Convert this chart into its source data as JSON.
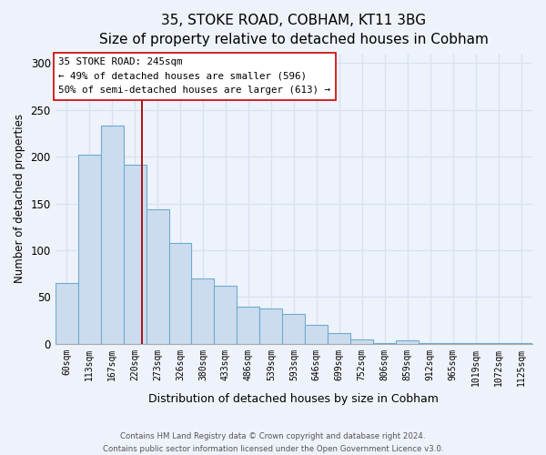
{
  "title1": "35, STOKE ROAD, COBHAM, KT11 3BG",
  "title2": "Size of property relative to detached houses in Cobham",
  "xlabel": "Distribution of detached houses by size in Cobham",
  "ylabel": "Number of detached properties",
  "bar_labels": [
    "60sqm",
    "113sqm",
    "167sqm",
    "220sqm",
    "273sqm",
    "326sqm",
    "380sqm",
    "433sqm",
    "486sqm",
    "539sqm",
    "593sqm",
    "646sqm",
    "699sqm",
    "752sqm",
    "806sqm",
    "859sqm",
    "912sqm",
    "965sqm",
    "1019sqm",
    "1072sqm",
    "1125sqm"
  ],
  "bar_values": [
    65,
    202,
    233,
    191,
    144,
    108,
    70,
    62,
    40,
    38,
    32,
    20,
    11,
    5,
    1,
    4,
    1,
    1,
    1,
    1,
    1
  ],
  "bar_color": "#ccdcee",
  "bar_edge_color": "#6bacd0",
  "vline_x": 3.33,
  "vline_color": "#aa0000",
  "annotation_title": "35 STOKE ROAD: 245sqm",
  "annotation_line1": "← 49% of detached houses are smaller (596)",
  "annotation_line2": "50% of semi-detached houses are larger (613) →",
  "annotation_box_facecolor": "#ffffff",
  "annotation_box_edge": "#cc0000",
  "ylim": [
    0,
    310
  ],
  "yticks": [
    0,
    50,
    100,
    150,
    200,
    250,
    300
  ],
  "footer1": "Contains HM Land Registry data © Crown copyright and database right 2024.",
  "footer2": "Contains public sector information licensed under the Open Government Licence v3.0.",
  "bg_color": "#eef2fa",
  "grid_color": "#d8e2f0",
  "title1_fontsize": 11,
  "title2_fontsize": 9.5
}
